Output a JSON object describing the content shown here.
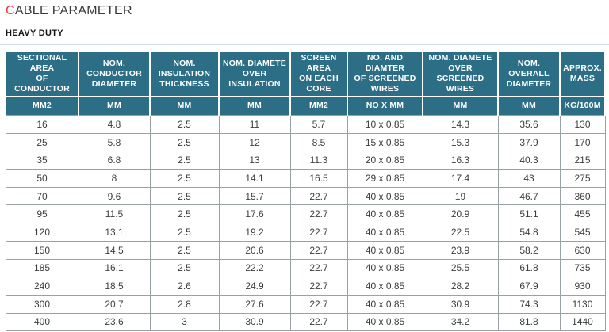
{
  "title": {
    "accent": "C",
    "rest": "ABLE PARAMETER"
  },
  "subtitle": "HEAVY DUTY",
  "colors": {
    "header_bg": "#2d6e87",
    "title_accent": "#e8383d",
    "cell_border": "#9aa1a5",
    "divider": "#cfe0e8",
    "body_text": "#3d3d3d"
  },
  "table": {
    "headers": [
      "SECTIONAL AREA\nOF CONDUCTOR",
      "NOM.\nCONDUCTOR\nDIAMETER",
      "NOM.\nINSULATION\nTHICKNESS",
      "NOM. DIAMETE\nOVER INSULATION",
      "SCREEN AREA\nON EACH\nCORE",
      "NO. AND DIAMTER\nOF SCREENED\nWIRES",
      "NOM. DIAMETE\nOVER SCREENED\nWIRES",
      "NOM. OVERALL\nDIAMETER",
      "APPROX.\nMASS"
    ],
    "units": [
      "MM2",
      "MM",
      "MM",
      "MM",
      "MM2",
      "NO X MM",
      "MM",
      "MM",
      "KG/100M"
    ],
    "rows": [
      [
        "16",
        "4.8",
        "2.5",
        "11",
        "5.7",
        "10 x 0.85",
        "14.3",
        "35.6",
        "130"
      ],
      [
        "25",
        "5.8",
        "2.5",
        "12",
        "8.5",
        "15 x 0.85",
        "15.3",
        "37.9",
        "170"
      ],
      [
        "35",
        "6.8",
        "2.5",
        "13",
        "11.3",
        "20 x 0.85",
        "16.3",
        "40.3",
        "215"
      ],
      [
        "50",
        "8",
        "2.5",
        "14.1",
        "16.5",
        "29 x 0.85",
        "17.4",
        "43",
        "275"
      ],
      [
        "70",
        "9.6",
        "2.5",
        "15.7",
        "22.7",
        "40 x 0.85",
        "19",
        "46.7",
        "360"
      ],
      [
        "95",
        "11.5",
        "2.5",
        "17.6",
        "22.7",
        "40 x 0.85",
        "20.9",
        "51.1",
        "455"
      ],
      [
        "120",
        "13.1",
        "2.5",
        "19.2",
        "22.7",
        "40 x 0.85",
        "22.5",
        "54.8",
        "545"
      ],
      [
        "150",
        "14.5",
        "2.5",
        "20.6",
        "22.7",
        "40 x 0.85",
        "23.9",
        "58.2",
        "630"
      ],
      [
        "185",
        "16.1",
        "2.5",
        "22.2",
        "22.7",
        "40 x 0.85",
        "25.5",
        "61.8",
        "735"
      ],
      [
        "240",
        "18.5",
        "2.6",
        "24.9",
        "22.7",
        "40 x 0.85",
        "28.2",
        "67.9",
        "930"
      ],
      [
        "300",
        "20.7",
        "2.8",
        "27.6",
        "22.7",
        "40 x 0.85",
        "30.9",
        "74.3",
        "1130"
      ],
      [
        "400",
        "23.6",
        "3",
        "30.9",
        "22.7",
        "40 x 0.85",
        "34.2",
        "81.8",
        "1440"
      ]
    ]
  }
}
